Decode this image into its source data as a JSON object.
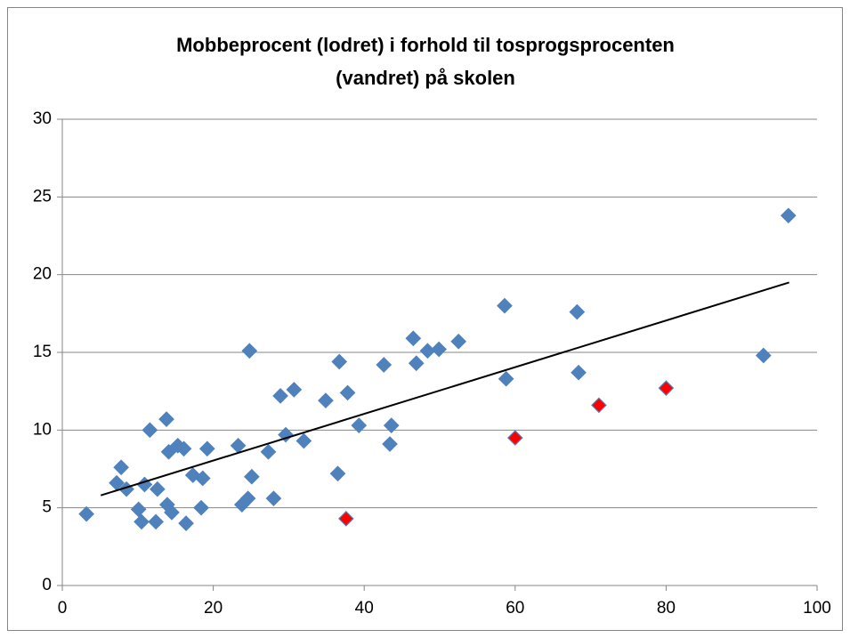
{
  "chart_data": {
    "type": "scatter",
    "title": [
      "Mobbeprocent (lodret) i forhold til tosprogsprocenten",
      "(vandret) på skolen"
    ],
    "xlim": [
      0,
      100
    ],
    "xticks": [
      0,
      20,
      40,
      60,
      80,
      100
    ],
    "ylim": [
      0,
      30
    ],
    "yticks": [
      0,
      5,
      10,
      15,
      20,
      25,
      30
    ],
    "grid": true,
    "series": [
      {
        "color": "#4f81bd",
        "x": [
          3.2,
          7.2,
          7.8,
          8.5,
          10.1,
          10.5,
          10.9,
          11.6,
          12.4,
          12.6,
          13.8,
          13.9,
          14.1,
          14.5,
          15.3,
          16.1,
          16.4,
          17.3,
          18.4,
          18.6,
          19.2,
          23.3,
          23.8,
          24.6,
          24.8,
          25.1,
          27.3,
          28.0,
          28.9,
          29.6,
          30.7,
          32.0,
          34.9,
          36.5,
          36.7,
          37.8,
          39.3,
          42.6,
          43.4,
          43.6,
          46.5,
          46.9,
          48.4,
          49.9,
          52.5,
          58.6,
          58.8,
          68.2,
          68.4,
          92.9,
          96.2
        ],
        "values": [
          4.6,
          6.6,
          7.6,
          6.2,
          4.9,
          4.1,
          6.5,
          10.0,
          4.1,
          6.2,
          10.7,
          5.2,
          8.6,
          4.7,
          9.0,
          8.8,
          4.0,
          7.1,
          5.0,
          6.9,
          8.8,
          9.0,
          5.2,
          5.6,
          15.1,
          7.0,
          8.6,
          5.6,
          12.2,
          9.7,
          12.6,
          9.3,
          11.9,
          7.2,
          14.4,
          12.4,
          10.3,
          14.2,
          9.1,
          10.3,
          15.9,
          14.3,
          15.1,
          15.2,
          15.7,
          18.0,
          13.3,
          17.6,
          13.7,
          14.8,
          23.8
        ]
      },
      {
        "color": "#ff0000",
        "x": [
          37.6,
          60.0,
          71.1,
          80.0
        ],
        "values": [
          4.3,
          9.5,
          11.6,
          12.7
        ]
      }
    ],
    "trendline": {
      "color": "#000000",
      "x": [
        5.1,
        96.3
      ],
      "values": [
        5.8,
        19.5
      ]
    }
  }
}
